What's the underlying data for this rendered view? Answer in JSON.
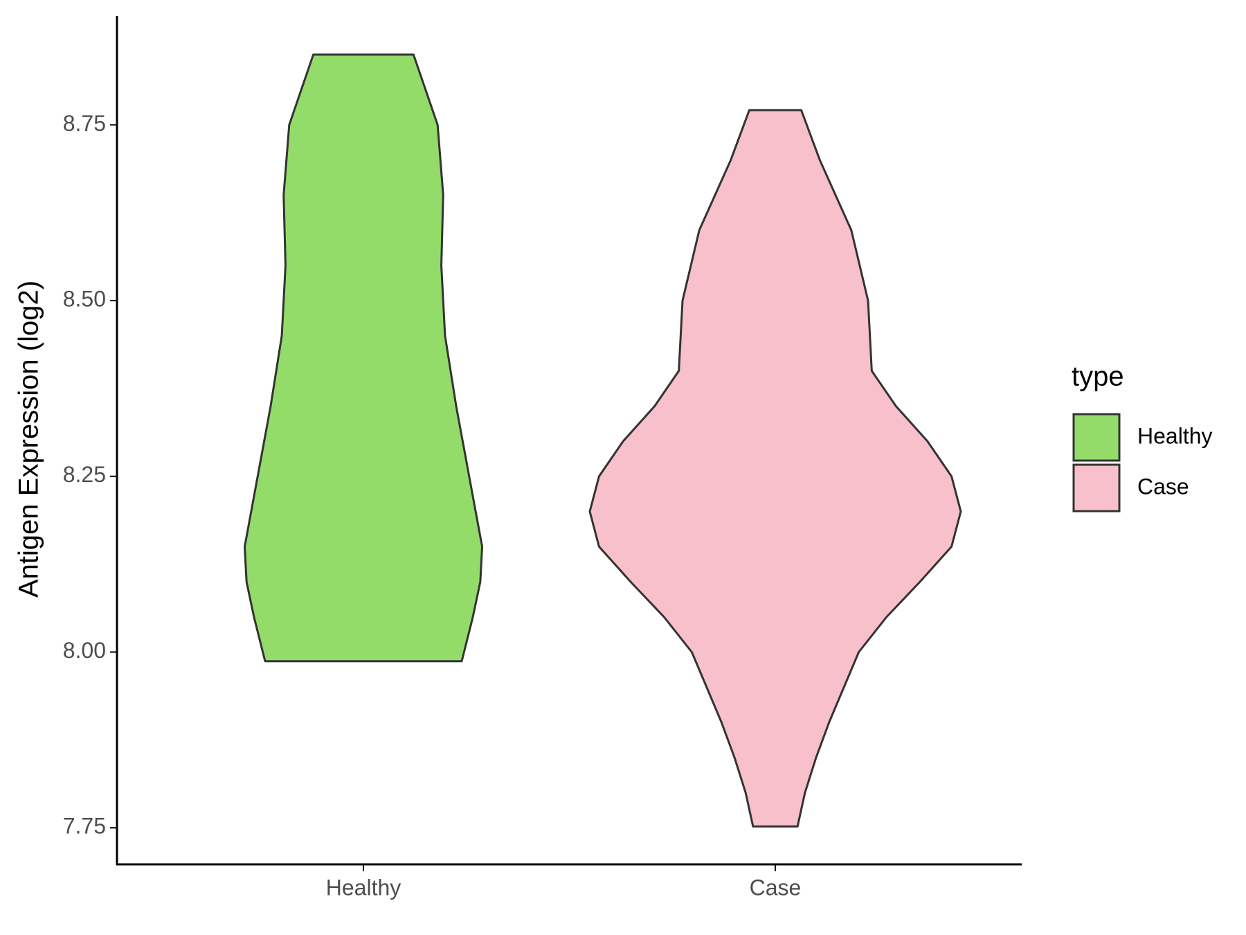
{
  "chart_data": {
    "type": "violin",
    "y_label": "Antigen Expression (log2)",
    "categories": [
      "Healthy",
      "Case"
    ],
    "legend_title": "type",
    "legend": "right",
    "series": [
      {
        "name": "Healthy",
        "color": "#93dc6a",
        "y": [
          8.85,
          8.75,
          8.65,
          8.55,
          8.45,
          8.35,
          8.25,
          8.15,
          8.1,
          8.05,
          7.987
        ],
        "width": [
          0.27,
          0.4,
          0.43,
          0.42,
          0.44,
          0.5,
          0.57,
          0.64,
          0.63,
          0.59,
          0.53
        ]
      },
      {
        "name": "Case",
        "color": "#f7c0cb",
        "y": [
          8.771,
          8.7,
          8.6,
          8.5,
          8.4,
          8.35,
          8.3,
          8.25,
          8.2,
          8.15,
          8.1,
          8.05,
          8.0,
          7.95,
          7.9,
          7.85,
          7.8,
          7.752
        ],
        "width": [
          0.14,
          0.24,
          0.41,
          0.5,
          0.52,
          0.65,
          0.82,
          0.95,
          1.0,
          0.95,
          0.78,
          0.6,
          0.45,
          0.37,
          0.29,
          0.22,
          0.16,
          0.12
        ]
      }
    ],
    "ylim": [
      7.698,
      8.905
    ],
    "yticks": [
      7.75,
      {
        "value": 8,
        "label": "8.00"
      },
      8.25,
      {
        "value": 8.5,
        "label": "8.50"
      },
      8.75
    ]
  }
}
